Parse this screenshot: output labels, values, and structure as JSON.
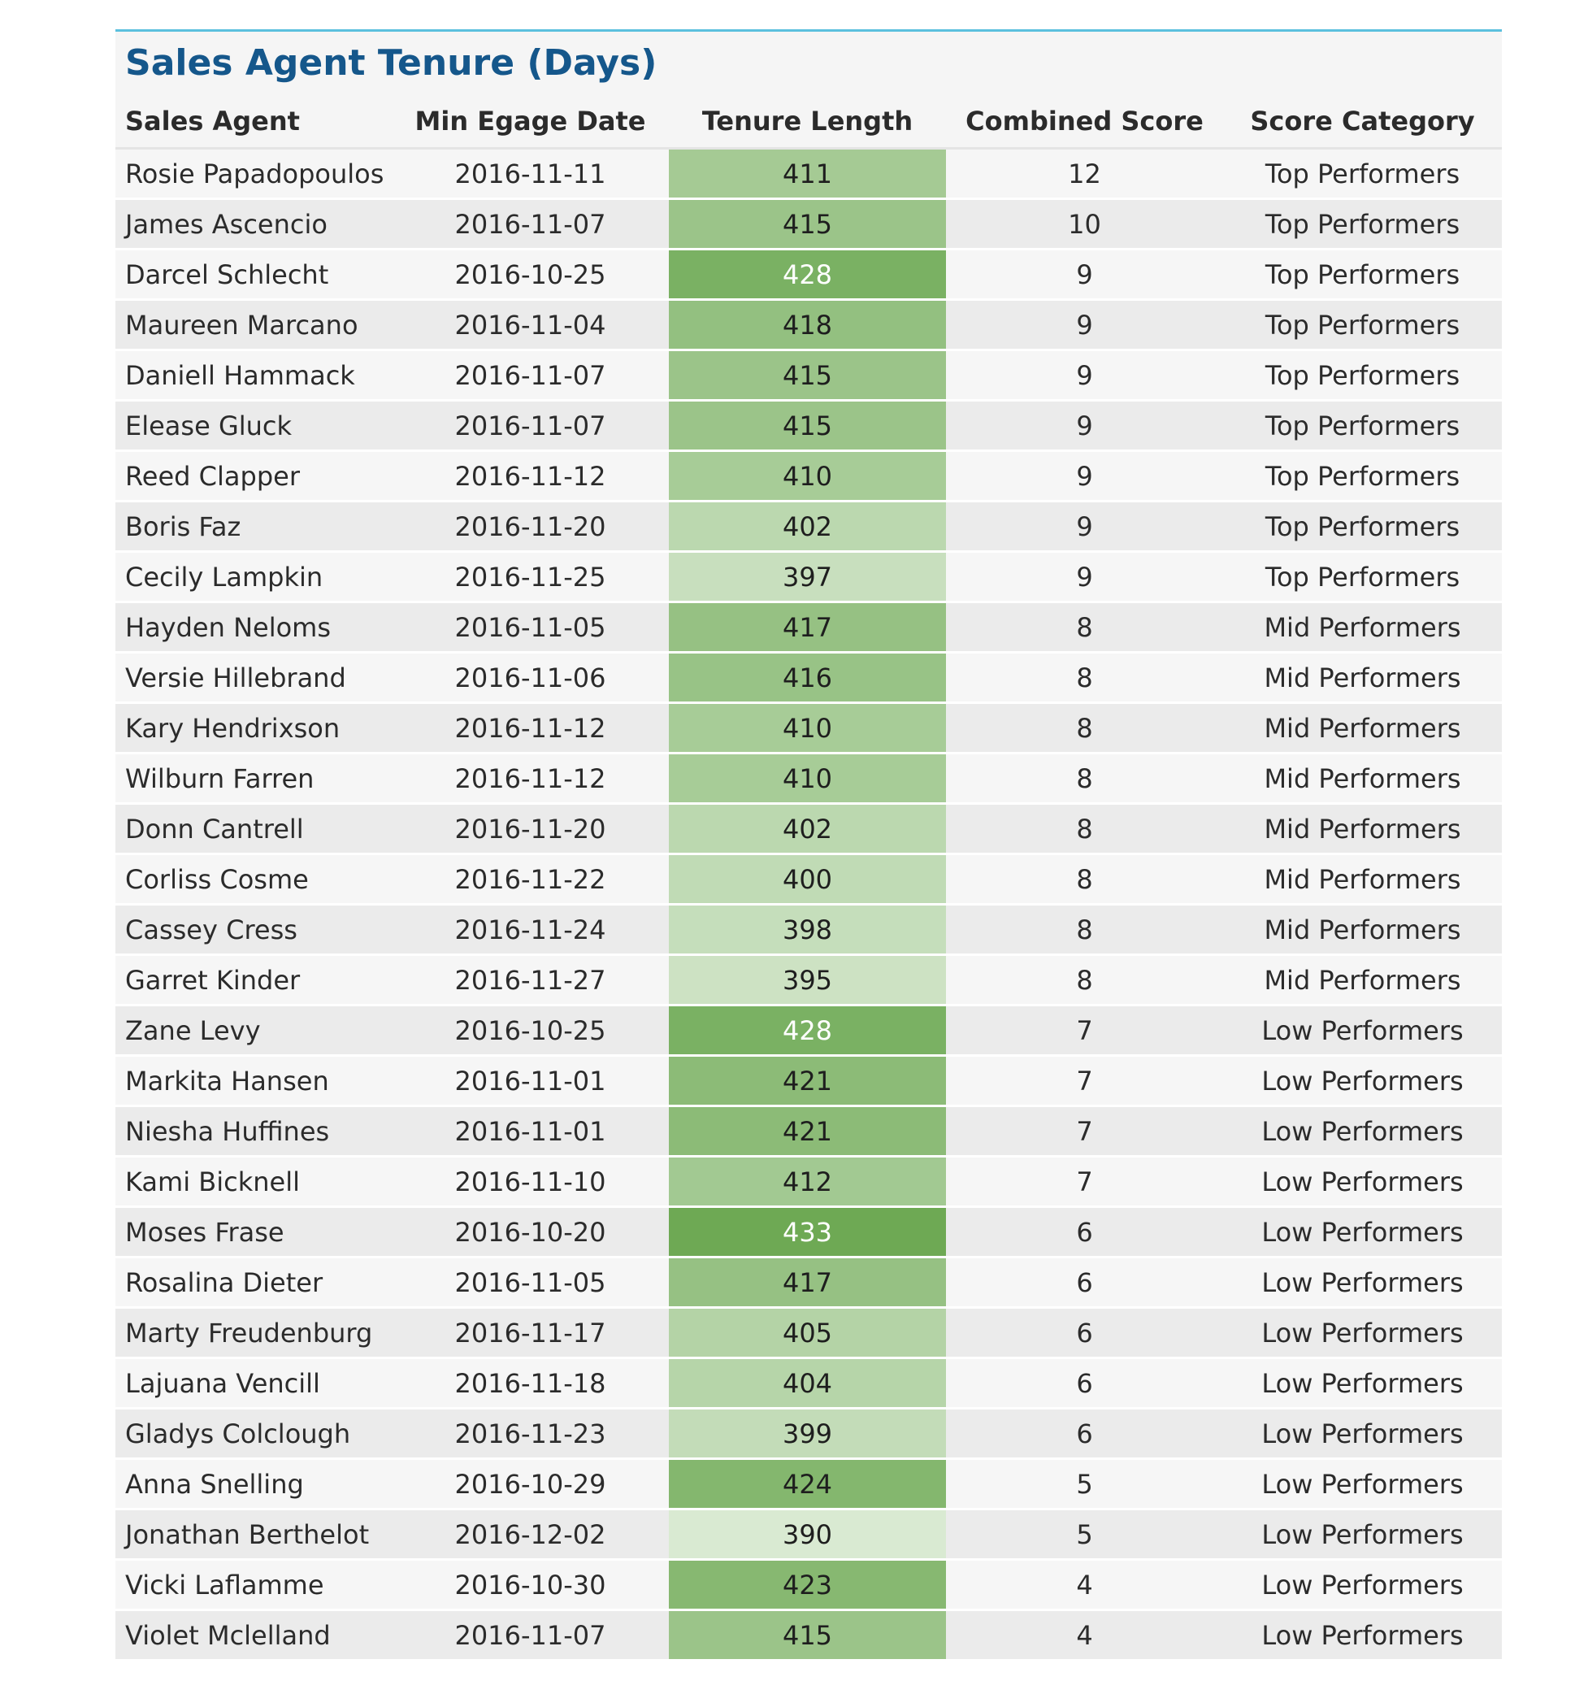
{
  "table": {
    "title": "Sales Agent Tenure (Days)",
    "columns": [
      "Sales Agent",
      "Min Egage Date",
      "Tenure Length",
      "Combined Score",
      "Score Category"
    ],
    "rows": [
      {
        "agent": "Rosie Papadopoulos",
        "date": "2016-11-11",
        "tenure": "411",
        "score": "12",
        "category": "Top Performers"
      },
      {
        "agent": "James Ascencio",
        "date": "2016-11-07",
        "tenure": "415",
        "score": "10",
        "category": "Top Performers"
      },
      {
        "agent": "Darcel Schlecht",
        "date": "2016-10-25",
        "tenure": "428",
        "score": "9",
        "category": "Top Performers"
      },
      {
        "agent": "Maureen Marcano",
        "date": "2016-11-04",
        "tenure": "418",
        "score": "9",
        "category": "Top Performers"
      },
      {
        "agent": "Daniell Hammack",
        "date": "2016-11-07",
        "tenure": "415",
        "score": "9",
        "category": "Top Performers"
      },
      {
        "agent": "Elease Gluck",
        "date": "2016-11-07",
        "tenure": "415",
        "score": "9",
        "category": "Top Performers"
      },
      {
        "agent": "Reed Clapper",
        "date": "2016-11-12",
        "tenure": "410",
        "score": "9",
        "category": "Top Performers"
      },
      {
        "agent": "Boris Faz",
        "date": "2016-11-20",
        "tenure": "402",
        "score": "9",
        "category": "Top Performers"
      },
      {
        "agent": "Cecily Lampkin",
        "date": "2016-11-25",
        "tenure": "397",
        "score": "9",
        "category": "Top Performers"
      },
      {
        "agent": "Hayden Neloms",
        "date": "2016-11-05",
        "tenure": "417",
        "score": "8",
        "category": "Mid Performers"
      },
      {
        "agent": "Versie Hillebrand",
        "date": "2016-11-06",
        "tenure": "416",
        "score": "8",
        "category": "Mid Performers"
      },
      {
        "agent": "Kary Hendrixson",
        "date": "2016-11-12",
        "tenure": "410",
        "score": "8",
        "category": "Mid Performers"
      },
      {
        "agent": "Wilburn Farren",
        "date": "2016-11-12",
        "tenure": "410",
        "score": "8",
        "category": "Mid Performers"
      },
      {
        "agent": "Donn Cantrell",
        "date": "2016-11-20",
        "tenure": "402",
        "score": "8",
        "category": "Mid Performers"
      },
      {
        "agent": "Corliss Cosme",
        "date": "2016-11-22",
        "tenure": "400",
        "score": "8",
        "category": "Mid Performers"
      },
      {
        "agent": "Cassey Cress",
        "date": "2016-11-24",
        "tenure": "398",
        "score": "8",
        "category": "Mid Performers"
      },
      {
        "agent": "Garret Kinder",
        "date": "2016-11-27",
        "tenure": "395",
        "score": "8",
        "category": "Mid Performers"
      },
      {
        "agent": "Zane Levy",
        "date": "2016-10-25",
        "tenure": "428",
        "score": "7",
        "category": "Low Performers"
      },
      {
        "agent": "Markita Hansen",
        "date": "2016-11-01",
        "tenure": "421",
        "score": "7",
        "category": "Low Performers"
      },
      {
        "agent": "Niesha Huffines",
        "date": "2016-11-01",
        "tenure": "421",
        "score": "7",
        "category": "Low Performers"
      },
      {
        "agent": "Kami Bicknell",
        "date": "2016-11-10",
        "tenure": "412",
        "score": "7",
        "category": "Low Performers"
      },
      {
        "agent": "Moses Frase",
        "date": "2016-10-20",
        "tenure": "433",
        "score": "6",
        "category": "Low Performers"
      },
      {
        "agent": "Rosalina Dieter",
        "date": "2016-11-05",
        "tenure": "417",
        "score": "6",
        "category": "Low Performers"
      },
      {
        "agent": "Marty Freudenburg",
        "date": "2016-11-17",
        "tenure": "405",
        "score": "6",
        "category": "Low Performers"
      },
      {
        "agent": "Lajuana Vencill",
        "date": "2016-11-18",
        "tenure": "404",
        "score": "6",
        "category": "Low Performers"
      },
      {
        "agent": "Gladys Colclough",
        "date": "2016-11-23",
        "tenure": "399",
        "score": "6",
        "category": "Low Performers"
      },
      {
        "agent": "Anna Snelling",
        "date": "2016-10-29",
        "tenure": "424",
        "score": "5",
        "category": "Low Performers"
      },
      {
        "agent": "Jonathan Berthelot",
        "date": "2016-12-02",
        "tenure": "390",
        "score": "5",
        "category": "Low Performers"
      },
      {
        "agent": "Vicki Laflamme",
        "date": "2016-10-30",
        "tenure": "423",
        "score": "4",
        "category": "Low Performers"
      },
      {
        "agent": "Violet Mclelland",
        "date": "2016-11-07",
        "tenure": "415",
        "score": "4",
        "category": "Low Performers"
      }
    ]
  },
  "colors": {
    "title": "#15578b",
    "accent_border": "#5bc0de",
    "heat_low": "#d9ead3",
    "heat_high": "#6aa84f"
  }
}
